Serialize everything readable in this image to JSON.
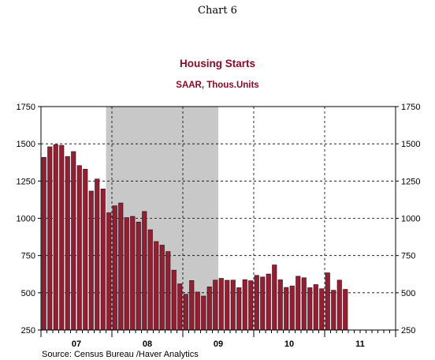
{
  "page_header": "Chart 6",
  "chart_data": {
    "type": "bar",
    "title": "Housing Starts",
    "subtitle": "SAAR, Thous.Units",
    "source": "Source:  Census Bureau /Haver Analytics",
    "ylim": [
      250,
      1750
    ],
    "y_ticks": [
      250,
      500,
      750,
      1000,
      1250,
      1500,
      1750
    ],
    "y_tick_labels": [
      "250",
      "500",
      "750",
      "1000",
      "1250",
      "1500",
      "1750"
    ],
    "x_tick_labels": [
      "07",
      "08",
      "09",
      "10",
      "11"
    ],
    "start_month": "2007-01",
    "months_shown": 60,
    "shaded_recession": {
      "start": "2007-12",
      "end": "2009-06"
    },
    "grid": "dashed vertical at year boundaries, dashed horizontal at y ticks",
    "colors": {
      "bar": "#9b1b30",
      "bar_edge": "#1a1a1a",
      "recession": "#c8c8c8",
      "title": "#8b0a26",
      "subtitle": "#8b0a26",
      "text": "#000000"
    },
    "series": [
      {
        "name": "Housing Starts",
        "values": [
          1409,
          1480,
          1495,
          1490,
          1415,
          1448,
          1354,
          1330,
          1183,
          1264,
          1197,
          1037,
          1084,
          1103,
          1005,
          1013,
          975,
          1046,
          923,
          844,
          820,
          777,
          652,
          560,
          490,
          582,
          505,
          478,
          540,
          585,
          597,
          584,
          585,
          534,
          588,
          581,
          617,
          606,
          626,
          687,
          587,
          536,
          546,
          611,
          601,
          534,
          555,
          527,
          634,
          517,
          585,
          523
        ]
      }
    ]
  }
}
